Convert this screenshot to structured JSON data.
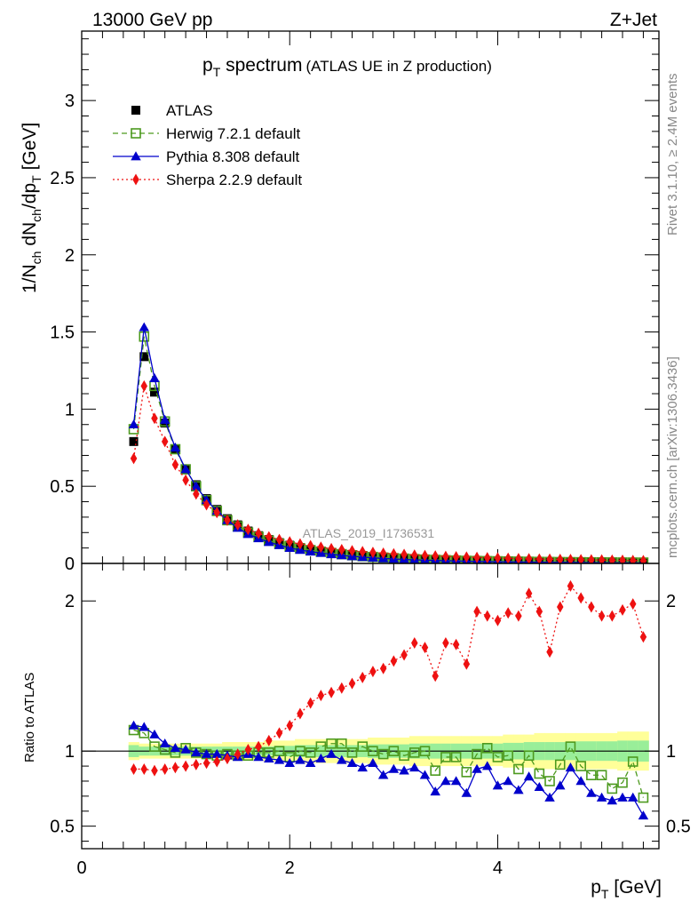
{
  "header": {
    "energy_label": "13000 GeV pp",
    "process_label": "Z+Jet",
    "title_main": "p",
    "title_sub": "T",
    "title_rest": " spectrum",
    "title_paren": "(ATLAS UE in Z production)",
    "analysis_id": "ATLAS_2019_I1736531",
    "side_rivet": "Rivet 3.1.10, ≥ 2.4M events",
    "side_mcplots": "mcplots.cern.ch [arXiv:1306.3436]"
  },
  "axes": {
    "x_label_main": "p",
    "x_label_sub": "T",
    "x_label_unit": " [GeV]",
    "y_label_top": "1/N",
    "y_label_ch": "ch",
    "y_label_mid": " dN",
    "y_label_ch2": "ch",
    "y_label_dp": "/dp",
    "y_label_T": "T",
    "y_label_unit": " [GeV]",
    "ratio_label": "Ratio to ATLAS"
  },
  "legend": [
    {
      "label": "ATLAS",
      "color": "#000000",
      "marker": "square-filled"
    },
    {
      "label": "Herwig 7.2.1 default",
      "color": "#4d9a1f",
      "marker": "square-open"
    },
    {
      "label": "Pythia 8.308 default",
      "color": "#0000cc",
      "marker": "triangle"
    },
    {
      "label": "Sherpa 2.2.9 default",
      "color": "#ee1111",
      "marker": "diamond"
    }
  ],
  "chart_data": [
    {
      "type": "scatter",
      "panel": "main",
      "xlim": [
        0,
        5.55
      ],
      "ylim": [
        0,
        3.45
      ],
      "x_ticks": [
        0,
        2,
        4
      ],
      "y_ticks": [
        0,
        0.5,
        1,
        1.5,
        2,
        2.5,
        3
      ],
      "y_tick_labels": [
        "0",
        "0.5",
        "1",
        "1.5",
        "2",
        "2.5",
        "3"
      ],
      "x": [
        0.5,
        0.6,
        0.7,
        0.8,
        0.9,
        1.0,
        1.1,
        1.2,
        1.3,
        1.4,
        1.5,
        1.6,
        1.7,
        1.8,
        1.9,
        2.0,
        2.1,
        2.2,
        2.3,
        2.4,
        2.5,
        2.6,
        2.7,
        2.8,
        2.9,
        3.0,
        3.1,
        3.2,
        3.3,
        3.4,
        3.5,
        3.6,
        3.7,
        3.8,
        3.9,
        4.0,
        4.1,
        4.2,
        4.3,
        4.4,
        4.5,
        4.6,
        4.7,
        4.8,
        4.9,
        5.0,
        5.1,
        5.2,
        5.3,
        5.4
      ],
      "series": [
        {
          "name": "ATLAS",
          "values": [
            0.79,
            1.34,
            1.11,
            0.91,
            0.74,
            0.61,
            0.51,
            0.42,
            0.35,
            0.29,
            0.25,
            0.21,
            0.18,
            0.155,
            0.135,
            0.118,
            0.103,
            0.09,
            0.08,
            0.071,
            0.063,
            0.056,
            0.05,
            0.045,
            0.04,
            0.036,
            0.033,
            0.03,
            0.027,
            0.025,
            0.023,
            0.021,
            0.019,
            0.018,
            0.016,
            0.015,
            0.014,
            0.013,
            0.012,
            0.011,
            0.0105,
            0.0098,
            0.0092,
            0.0086,
            0.0081,
            0.0076,
            0.0072,
            0.0068,
            0.0064,
            0.006
          ]
        },
        {
          "name": "Herwig 7.2.1 default",
          "values": [
            0.87,
            1.47,
            1.15,
            0.92,
            0.74,
            0.61,
            0.5,
            0.41,
            0.34,
            0.28,
            0.24,
            0.2,
            0.172,
            0.148,
            0.128,
            0.11,
            0.098,
            0.086,
            0.076,
            0.068,
            0.06,
            0.053,
            0.047,
            0.042,
            0.038,
            0.034,
            0.031,
            0.028,
            0.025,
            0.023,
            0.021,
            0.019,
            0.017,
            0.016,
            0.015,
            0.014,
            0.013,
            0.012,
            0.011,
            0.01,
            0.0095,
            0.0088,
            0.0083,
            0.0078,
            0.0073,
            0.0069,
            0.0065,
            0.0061,
            0.0058,
            0.0055
          ]
        },
        {
          "name": "Pythia 8.308 default",
          "values": [
            0.9,
            1.53,
            1.2,
            0.93,
            0.75,
            0.61,
            0.5,
            0.41,
            0.34,
            0.28,
            0.23,
            0.19,
            0.162,
            0.138,
            0.118,
            0.1,
            0.087,
            0.076,
            0.067,
            0.059,
            0.052,
            0.046,
            0.041,
            0.036,
            0.032,
            0.029,
            0.026,
            0.023,
            0.021,
            0.019,
            0.017,
            0.0155,
            0.014,
            0.013,
            0.012,
            0.011,
            0.01,
            0.0092,
            0.0085,
            0.0078,
            0.0072,
            0.0066,
            0.0061,
            0.0056,
            0.0052,
            0.0048,
            0.0044,
            0.0041,
            0.0038,
            0.0035
          ]
        },
        {
          "name": "Sherpa 2.2.9 default",
          "values": [
            0.68,
            1.15,
            0.94,
            0.79,
            0.64,
            0.54,
            0.45,
            0.38,
            0.33,
            0.28,
            0.25,
            0.22,
            0.195,
            0.172,
            0.155,
            0.14,
            0.126,
            0.115,
            0.105,
            0.096,
            0.089,
            0.082,
            0.076,
            0.071,
            0.066,
            0.062,
            0.058,
            0.054,
            0.051,
            0.048,
            0.045,
            0.043,
            0.041,
            0.039,
            0.037,
            0.035,
            0.033,
            0.031,
            0.03,
            0.028,
            0.027,
            0.026,
            0.025,
            0.024,
            0.023,
            0.022,
            0.021,
            0.02,
            0.019,
            0.018
          ]
        }
      ]
    },
    {
      "type": "line",
      "panel": "ratio",
      "xlim": [
        0,
        5.55
      ],
      "ylim": [
        0.35,
        2.25
      ],
      "x_ticks": [
        0,
        2,
        4
      ],
      "x_tick_labels": [
        "0",
        "2",
        "4"
      ],
      "y_ticks": [
        0.5,
        1,
        2
      ],
      "y_tick_labels": [
        "0.5",
        "1",
        "2"
      ],
      "reference_line": 1,
      "x": [
        0.5,
        0.6,
        0.7,
        0.8,
        0.9,
        1.0,
        1.1,
        1.2,
        1.3,
        1.4,
        1.5,
        1.6,
        1.7,
        1.8,
        1.9,
        2.0,
        2.1,
        2.2,
        2.3,
        2.4,
        2.5,
        2.6,
        2.7,
        2.8,
        2.9,
        3.0,
        3.1,
        3.2,
        3.3,
        3.4,
        3.5,
        3.6,
        3.7,
        3.8,
        3.9,
        4.0,
        4.1,
        4.2,
        4.3,
        4.4,
        4.5,
        4.6,
        4.7,
        4.8,
        4.9,
        5.0,
        5.1,
        5.2,
        5.3,
        5.4
      ],
      "band_stat": [
        0.04,
        0.03,
        0.03,
        0.03,
        0.03,
        0.03,
        0.03,
        0.03,
        0.03,
        0.03,
        0.03,
        0.03,
        0.03,
        0.03,
        0.035,
        0.035,
        0.04,
        0.04,
        0.04,
        0.04,
        0.04,
        0.04,
        0.04,
        0.045,
        0.045,
        0.045,
        0.045,
        0.05,
        0.05,
        0.05,
        0.05,
        0.05,
        0.05,
        0.05,
        0.05,
        0.05,
        0.055,
        0.055,
        0.06,
        0.06,
        0.06,
        0.06,
        0.06,
        0.065,
        0.065,
        0.065,
        0.065,
        0.07,
        0.07,
        0.07
      ],
      "band_total": [
        0.06,
        0.05,
        0.05,
        0.05,
        0.05,
        0.05,
        0.05,
        0.05,
        0.05,
        0.06,
        0.06,
        0.06,
        0.06,
        0.07,
        0.07,
        0.07,
        0.08,
        0.08,
        0.08,
        0.08,
        0.08,
        0.08,
        0.08,
        0.09,
        0.09,
        0.09,
        0.09,
        0.1,
        0.1,
        0.1,
        0.1,
        0.1,
        0.1,
        0.1,
        0.1,
        0.1,
        0.11,
        0.11,
        0.11,
        0.12,
        0.12,
        0.12,
        0.12,
        0.12,
        0.12,
        0.12,
        0.12,
        0.13,
        0.13,
        0.13
      ],
      "series": [
        {
          "name": "Herwig 7.2.1 default",
          "values": [
            1.14,
            1.12,
            1.03,
            1.01,
            0.99,
            1.02,
            0.99,
            0.98,
            0.97,
            0.98,
            0.97,
            0.97,
            0.99,
            0.99,
            1.0,
            0.96,
            1.0,
            0.99,
            1.03,
            1.05,
            1.05,
            0.99,
            1.03,
            1.0,
            0.98,
            1.0,
            0.97,
            0.99,
            1.0,
            0.87,
            0.96,
            0.96,
            0.86,
            0.98,
            1.02,
            0.96,
            0.97,
            0.88,
            0.97,
            0.85,
            0.8,
            0.91,
            1.03,
            0.9,
            0.84,
            0.84,
            0.75,
            0.79,
            0.93,
            0.69
          ]
        },
        {
          "name": "Pythia 8.308 default",
          "values": [
            1.17,
            1.16,
            1.11,
            1.05,
            1.02,
            1.01,
            0.99,
            0.98,
            0.98,
            0.97,
            0.96,
            0.98,
            0.96,
            0.95,
            0.94,
            0.92,
            0.94,
            0.92,
            0.95,
            0.98,
            0.94,
            0.92,
            0.89,
            0.92,
            0.84,
            0.88,
            0.87,
            0.89,
            0.84,
            0.73,
            0.8,
            0.8,
            0.72,
            0.88,
            0.9,
            0.77,
            0.8,
            0.74,
            0.83,
            0.76,
            0.69,
            0.77,
            0.89,
            0.8,
            0.72,
            0.69,
            0.67,
            0.69,
            0.69,
            0.57
          ]
        },
        {
          "name": "Sherpa 2.2.9 default",
          "values": [
            0.88,
            0.88,
            0.87,
            0.88,
            0.89,
            0.9,
            0.91,
            0.92,
            0.93,
            0.95,
            0.98,
            1.01,
            1.03,
            1.07,
            1.12,
            1.17,
            1.25,
            1.32,
            1.37,
            1.39,
            1.42,
            1.45,
            1.49,
            1.53,
            1.55,
            1.6,
            1.64,
            1.72,
            1.69,
            1.5,
            1.72,
            1.71,
            1.58,
            1.93,
            1.9,
            1.87,
            1.92,
            1.9,
            2.05,
            1.93,
            1.66,
            1.96,
            2.1,
            2.02,
            1.96,
            1.9,
            1.9,
            1.94,
            1.98,
            1.76
          ]
        }
      ]
    }
  ]
}
